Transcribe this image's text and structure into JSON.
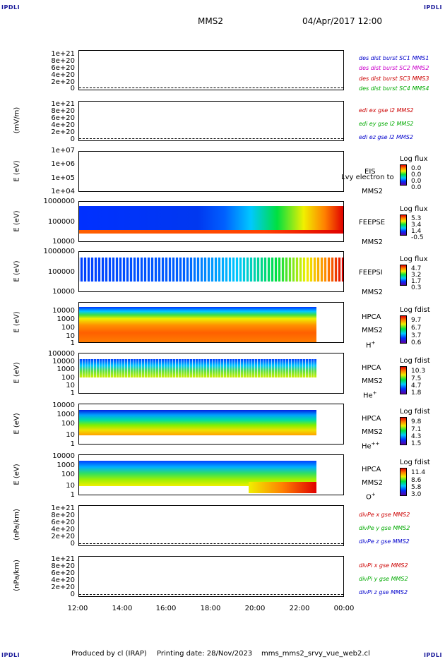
{
  "corners": {
    "tl": "IPDLI",
    "tr": "IPDLI",
    "bl": "IPDLI",
    "br": "IPDLI"
  },
  "header": {
    "mission": "MMS2",
    "datetime": "04/Apr/2017 12:00"
  },
  "footer": {
    "produced": "Produced by cl (IRAP)",
    "printing": "Printing date: 28/Nov/2023",
    "file": "mms_mms2_srvy_vue_web2.cl"
  },
  "xaxis": {
    "ticks": [
      "12:00",
      "14:00",
      "16:00",
      "18:00",
      "20:00",
      "22:00",
      "00:00"
    ]
  },
  "panels": {
    "p1": {
      "ticks": [
        "1e+21",
        "8e+20",
        "6e+20",
        "4e+20",
        "2e+20",
        "0"
      ],
      "labels": [
        "des dist burst SC1 MMS1",
        "des dist burst SC2 MMS2",
        "des dist burst SC3 MMS3",
        "des dist burst SC4 MMS4"
      ],
      "colors": [
        "#0000cc",
        "#cc00cc",
        "#cc0000",
        "#00bb00"
      ]
    },
    "p2": {
      "ylabel": "(mV/m)",
      "ticks": [
        "1e+21",
        "8e+20",
        "6e+20",
        "4e+20",
        "2e+20",
        "0"
      ],
      "labels": [
        "edi ex gse l2 MMS2",
        "edi ey gse l2 MMS2",
        "edi ez gse l2 MMS2"
      ],
      "colors": [
        "#cc0000",
        "#00bb00",
        "#0000cc"
      ]
    },
    "p3": {
      "ylabel": "E (eV)",
      "ticks": [
        "1e+07",
        "1e+06",
        "1e+05",
        "1e+04"
      ],
      "inst": "EIS",
      "note": "Lvy electron to",
      "sc": "MMS2",
      "cb_title": "Log flux",
      "cb_vals": [
        "0.0",
        "0.0",
        "0.0",
        "0.0"
      ]
    },
    "p4": {
      "ylabel": "E (eV)",
      "ticks": [
        "1000000",
        "100000",
        "10000"
      ],
      "inst": "FEEPSE",
      "sc": "MMS2",
      "cb_title": "Log flux",
      "cb_vals": [
        "5.3",
        "3.4",
        "1.4",
        "-0.5"
      ]
    },
    "p5": {
      "ylabel": "E (eV)",
      "ticks": [
        "1000000",
        "100000",
        "10000"
      ],
      "inst": "FEEPSI",
      "sc": "MMS2",
      "cb_title": "Log flux",
      "cb_vals": [
        "4.7",
        "3.2",
        "1.7",
        "0.3"
      ]
    },
    "p6": {
      "ylabel": "E (eV)",
      "ticks": [
        "10000",
        "1000",
        "100",
        "10",
        "1"
      ],
      "inst": "HPCA",
      "sc": "MMS2",
      "species": "H",
      "sup": "+",
      "cb_title": "Log fdist",
      "cb_vals": [
        "9.7",
        "6.7",
        "3.7",
        "0.6"
      ]
    },
    "p7": {
      "ylabel": "E (eV)",
      "ticks": [
        "100000",
        "10000",
        "1000",
        "100",
        "10",
        "1"
      ],
      "inst": "HPCA",
      "sc": "MMS2",
      "species": "He",
      "sup": "+",
      "cb_title": "Log fdist",
      "cb_vals": [
        "10.3",
        "7.5",
        "4.7",
        "1.8"
      ]
    },
    "p8": {
      "ylabel": "E (eV)",
      "ticks": [
        "10000",
        "1000",
        "100",
        "10",
        "1"
      ],
      "inst": "HPCA",
      "sc": "MMS2",
      "species": "He",
      "sup": "++",
      "cb_title": "Log fdist",
      "cb_vals": [
        "9.8",
        "7.1",
        "4.3",
        "1.5"
      ]
    },
    "p9": {
      "ylabel": "E (eV)",
      "ticks": [
        "10000",
        "1000",
        "100",
        "10",
        "1"
      ],
      "inst": "HPCA",
      "sc": "MMS2",
      "species": "O",
      "sup": "+",
      "cb_title": "Log fdist",
      "cb_vals": [
        "11.4",
        "8.6",
        "5.8",
        "3.0"
      ]
    },
    "p10": {
      "ylabel": "(nPa/km)",
      "ticks": [
        "1e+21",
        "8e+20",
        "6e+20",
        "4e+20",
        "2e+20",
        "0"
      ],
      "labels": [
        "divPe x gse MMS2",
        "divPe y gse MMS2",
        "divPe z gse MMS2"
      ],
      "colors": [
        "#cc0000",
        "#00bb00",
        "#0000cc"
      ]
    },
    "p11": {
      "ylabel": "(nPa/km)",
      "ticks": [
        "1e+21",
        "8e+20",
        "6e+20",
        "4e+20",
        "2e+20",
        "0"
      ],
      "labels": [
        "divPi x gse MMS2",
        "divPi y gse MMS2",
        "divPi z gse MMS2"
      ],
      "colors": [
        "#cc0000",
        "#00bb00",
        "#0000cc"
      ]
    }
  },
  "chart_data": {
    "type": "heatmap",
    "title": "MMS2",
    "x_range": [
      "12:00",
      "00:00"
    ],
    "panels": [
      {
        "name": "des dist burst",
        "type": "line",
        "ylim": [
          0,
          1e+21
        ]
      },
      {
        "name": "edi e gse l2",
        "type": "line",
        "ylim": [
          0,
          1e+21
        ]
      },
      {
        "name": "EIS",
        "type": "heatmap",
        "ylim": [
          10000.0,
          10000000.0
        ],
        "colorbar": [
          0.0,
          0.0,
          0.0,
          0.0
        ]
      },
      {
        "name": "FEEPSE",
        "type": "heatmap",
        "ylim": [
          10000.0,
          1000000.0
        ],
        "colorbar": [
          5.3,
          3.4,
          1.4,
          -0.5
        ]
      },
      {
        "name": "FEEPSI",
        "type": "heatmap",
        "ylim": [
          10000.0,
          1000000.0
        ],
        "colorbar": [
          4.7,
          3.2,
          1.7,
          0.3
        ]
      },
      {
        "name": "HPCA H+",
        "type": "heatmap",
        "ylim": [
          1,
          10000.0
        ],
        "colorbar": [
          9.7,
          6.7,
          3.7,
          0.6
        ]
      },
      {
        "name": "HPCA He+",
        "type": "heatmap",
        "ylim": [
          1,
          100000.0
        ],
        "colorbar": [
          10.3,
          7.5,
          4.7,
          1.8
        ]
      },
      {
        "name": "HPCA He++",
        "type": "heatmap",
        "ylim": [
          1,
          10000.0
        ],
        "colorbar": [
          9.8,
          7.1,
          4.3,
          1.5
        ]
      },
      {
        "name": "HPCA O+",
        "type": "heatmap",
        "ylim": [
          1,
          10000.0
        ],
        "colorbar": [
          11.4,
          8.6,
          5.8,
          3.0
        ]
      },
      {
        "name": "divPe gse",
        "type": "line",
        "ylim": [
          0,
          1e+21
        ]
      },
      {
        "name": "divPi gse",
        "type": "line",
        "ylim": [
          0,
          1e+21
        ]
      }
    ]
  }
}
